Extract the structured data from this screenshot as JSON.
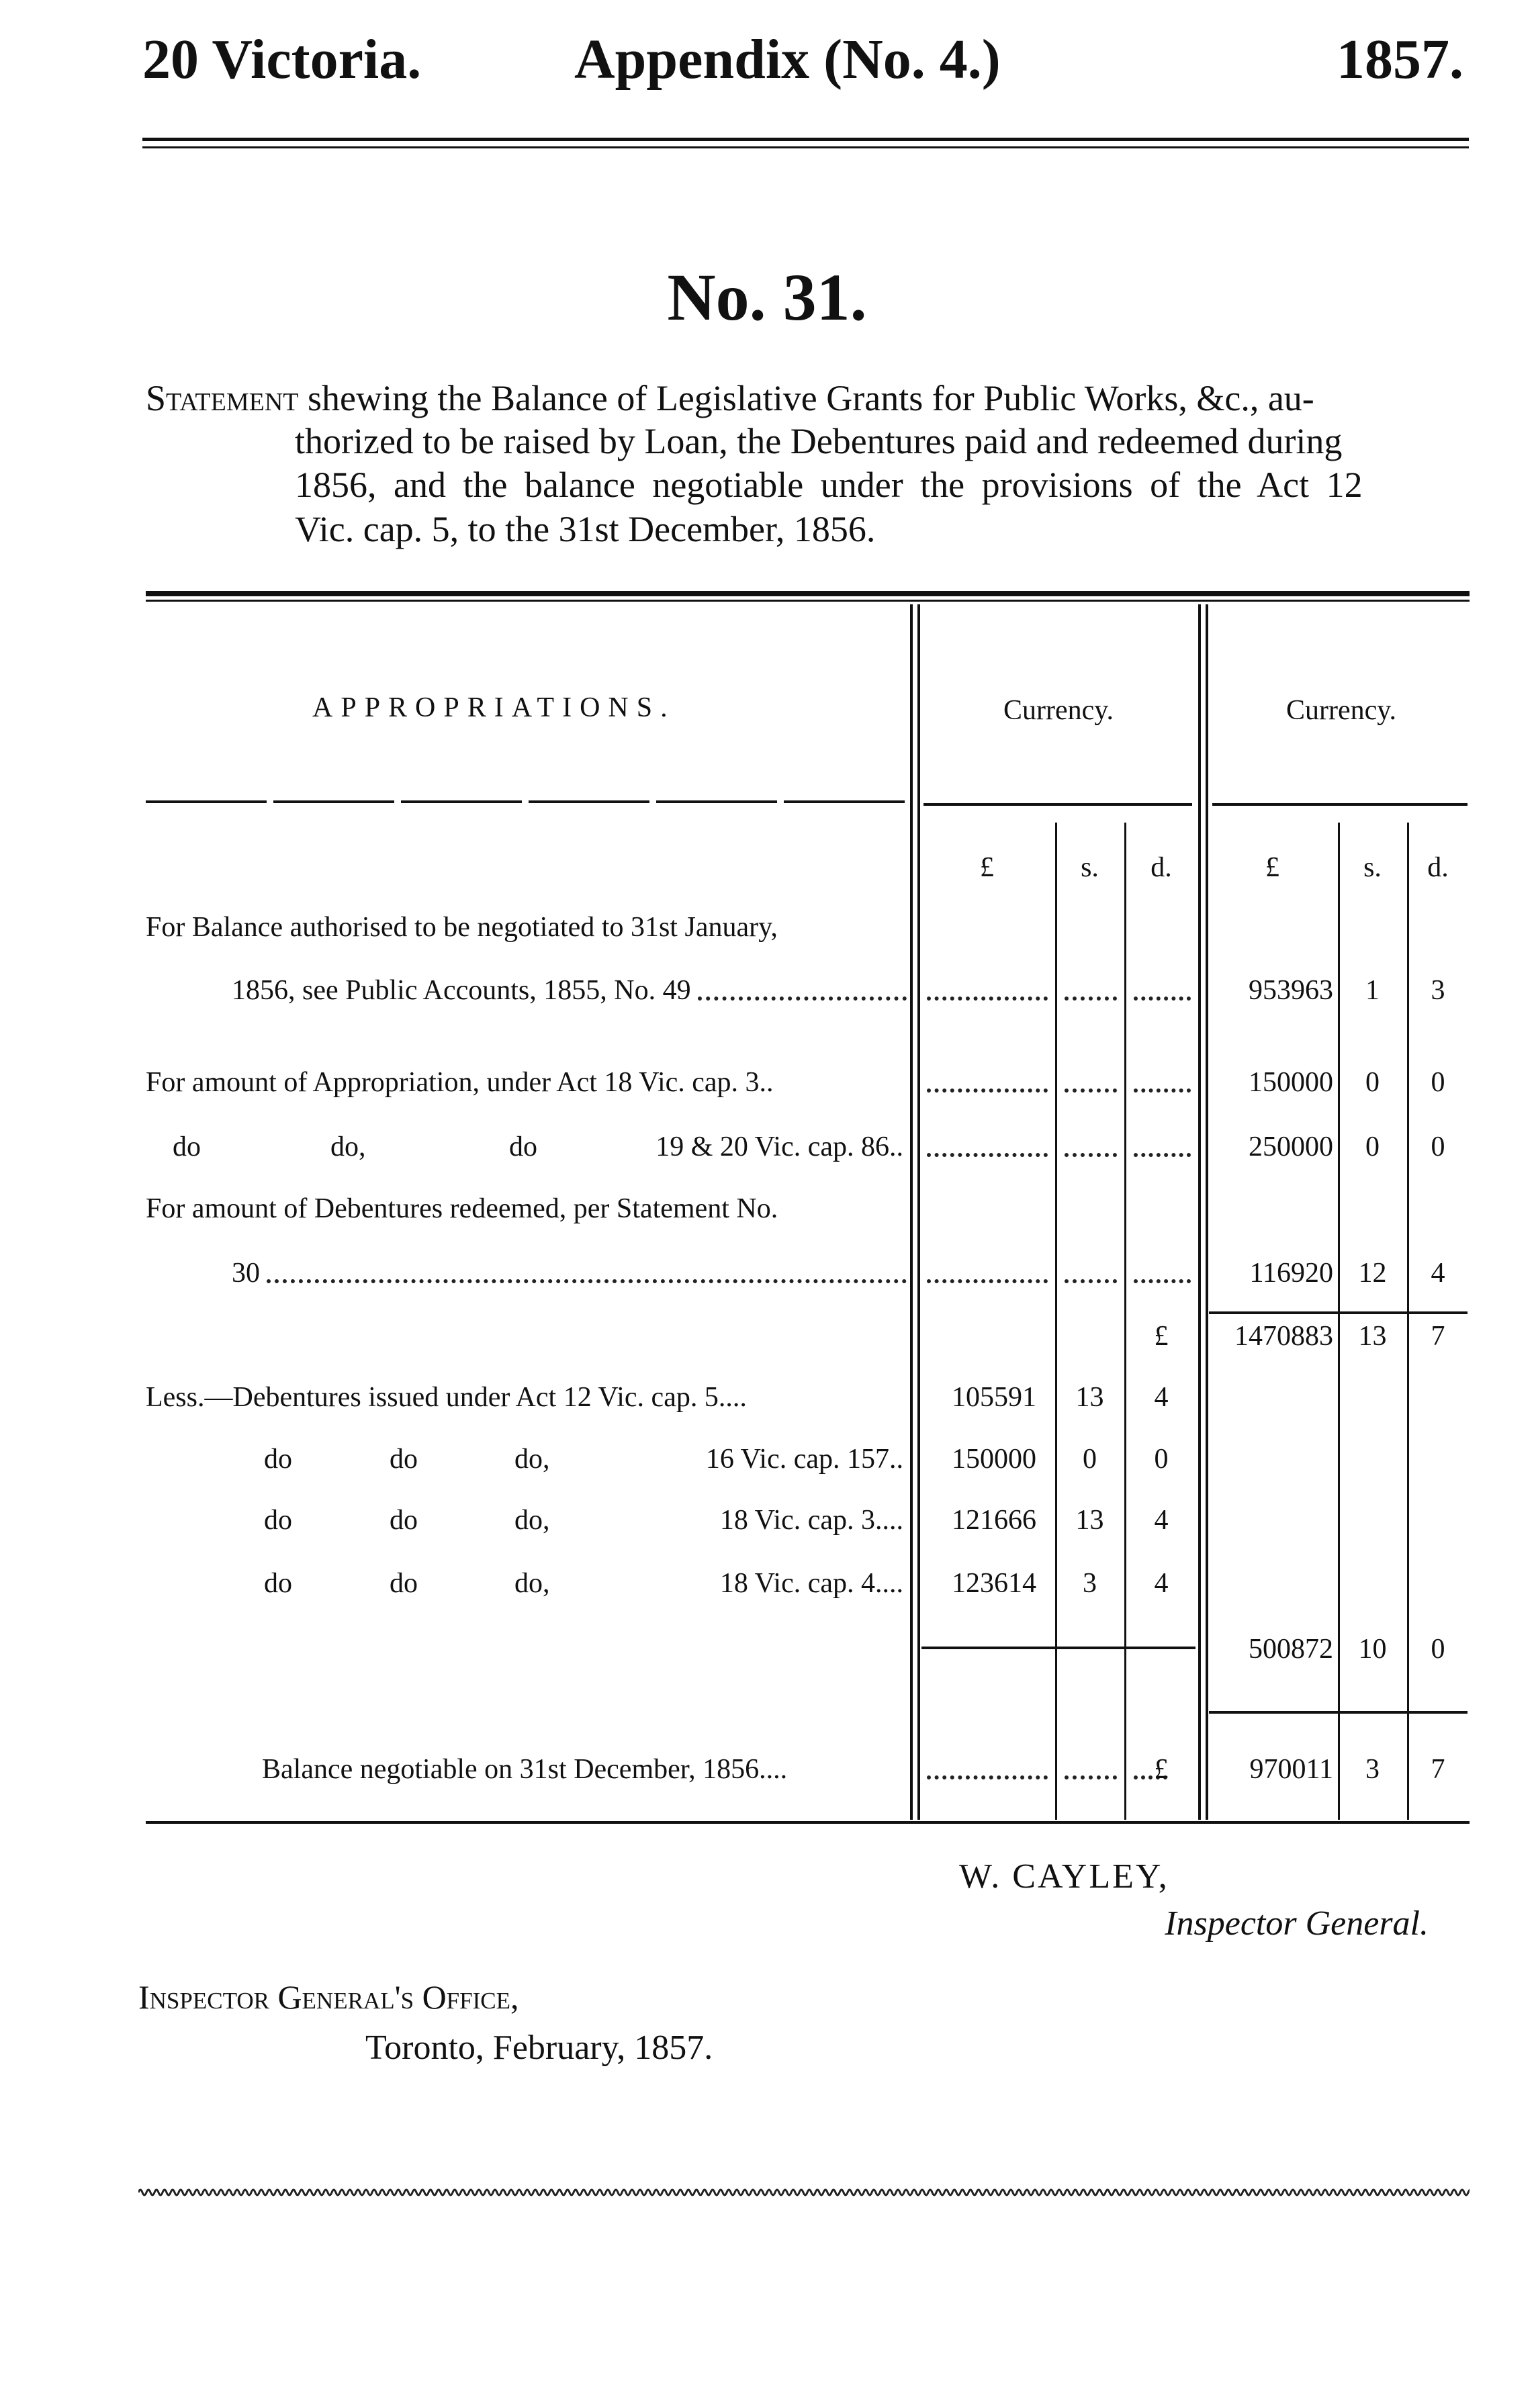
{
  "header": {
    "left": "20 Victoria.",
    "center": "Appendix (No. 4.)",
    "right": "1857."
  },
  "title": "No. 31.",
  "statement": {
    "lead": "Statement",
    "line1": " shewing the Balance of Legislative Grants for Public Works, &c., au-",
    "line2": "thorized to be raised by Loan, the Debentures paid and redeemed during",
    "line3": "1856, and the balance negotiable under the provisions of the Act 12",
    "line4": "Vic. cap. 5, to the 31st December, 1856."
  },
  "table": {
    "col_header": "APPROPRIATIONS.",
    "currency1": "Currency.",
    "currency2": "Currency.",
    "units": [
      "£",
      "s.",
      "d.",
      "£",
      "s.",
      "d."
    ],
    "rows": [
      {
        "label": "For Balance authorised to be negotiated to 31st January,"
      },
      {
        "label": "1856, see Public Accounts, 1855, No. 49",
        "leader": true,
        "c2": [
          "953963",
          "1",
          "3"
        ]
      },
      {
        "label": "For amount of Appropriation, under Act 18 Vic. cap. 3..",
        "c1leader": true,
        "c2": [
          "150000",
          "0",
          "0"
        ]
      },
      {
        "parts": [
          "do",
          "do,",
          "do",
          "19 & 20 Vic. cap. 86.."
        ],
        "c1leader": true,
        "c2": [
          "250000",
          "0",
          "0"
        ]
      },
      {
        "label": "For amount of Debentures redeemed, per Statement No."
      },
      {
        "label": "30",
        "leader": true,
        "c2": [
          "116920",
          "12",
          "4"
        ]
      },
      {
        "c1": [
          "",
          "",
          "£"
        ],
        "c2": [
          "1470883",
          "13",
          "7"
        ]
      },
      {
        "label": "Less.—Debentures issued under Act 12 Vic. cap. 5....",
        "c1": [
          "105591",
          "13",
          "4"
        ]
      },
      {
        "parts": [
          "do",
          "do",
          "do,",
          "16 Vic. cap. 157.."
        ],
        "c1": [
          "150000",
          "0",
          "0"
        ]
      },
      {
        "parts": [
          "do",
          "do",
          "do,",
          "18 Vic. cap. 3...."
        ],
        "c1": [
          "121666",
          "13",
          "4"
        ]
      },
      {
        "parts": [
          "do",
          "do",
          "do,",
          "18 Vic. cap. 4...."
        ],
        "c1": [
          "123614",
          "3",
          "4"
        ]
      },
      {
        "c2": [
          "500872",
          "10",
          "0"
        ]
      },
      {
        "label": "Balance negotiable on 31st December, 1856....",
        "c1leader": true,
        "c1": [
          "",
          "",
          "£"
        ],
        "c2": [
          "970011",
          "3",
          "7"
        ]
      }
    ]
  },
  "signature": {
    "name": "W. CAYLEY,",
    "title": "Inspector General."
  },
  "office": {
    "line1": "Inspector General's Office,",
    "line2": "Toronto, February, 1857."
  }
}
